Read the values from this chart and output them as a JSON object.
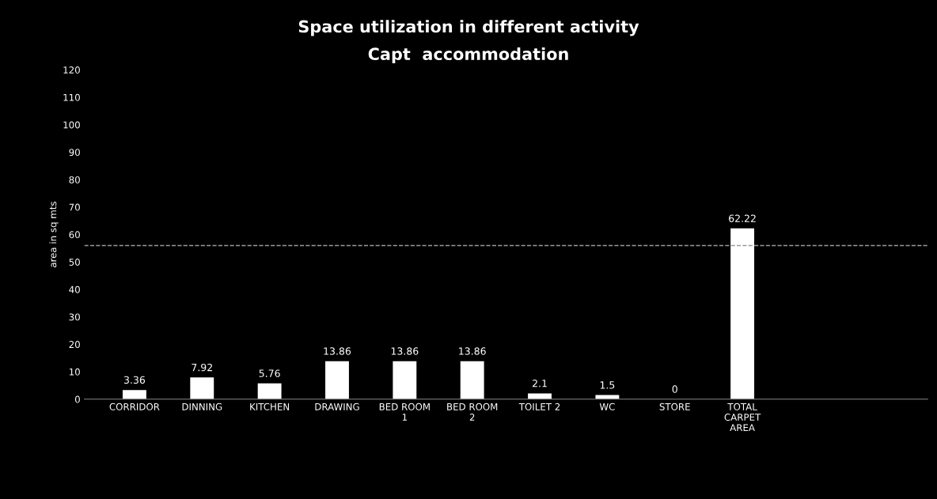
{
  "chart_data": {
    "type": "bar",
    "title": "Space utilization in different activity",
    "subtitle": "Capt  accommodation",
    "ylabel": "area in sq mts",
    "categories": [
      "CORRIDOR",
      "DINNING",
      "KITCHEN",
      "DRAWING",
      "BED ROOM\n1",
      "BED ROOM\n2",
      "TOILET 2",
      "WC",
      "STORE",
      "TOTAL\nCARPET\nAREA",
      null,
      null
    ],
    "values": [
      3.36,
      7.92,
      5.76,
      13.86,
      13.86,
      13.86,
      2.1,
      1.5,
      0,
      62.22,
      null,
      null
    ],
    "color": "#ffffff",
    "ylim": [
      0,
      120
    ],
    "yticks": [
      0,
      10,
      20,
      30,
      40,
      50,
      60,
      70,
      80,
      90,
      100,
      110,
      120
    ],
    "ref_lines": [
      {
        "axis": "y",
        "value": 56,
        "label": null,
        "color": "#9a9a9a",
        "line_style": "dashed"
      }
    ],
    "data_labels": true,
    "grid": false,
    "legend": false
  }
}
